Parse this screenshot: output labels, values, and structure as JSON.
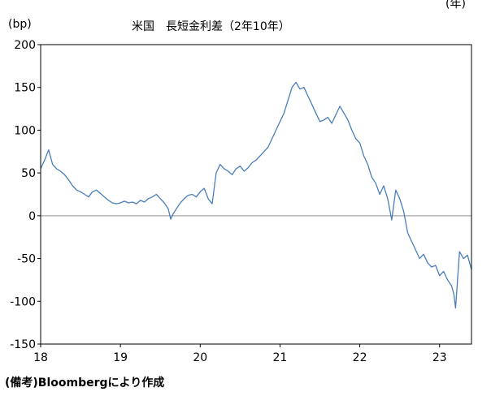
{
  "chart_data": {
    "type": "line",
    "title": "米国　長短金利差（2年10年）",
    "ylabel": "(bp)",
    "xlabel": "(年)",
    "source": "(備考)Bloombergにより作成",
    "ylim": [
      -150,
      200
    ],
    "xlim": [
      2018.0,
      2023.4
    ],
    "y_ticks": [
      "200",
      "150",
      "100",
      "50",
      "0",
      "-50",
      "-100",
      "-150"
    ],
    "x_ticks": [
      "18",
      "19",
      "20",
      "21",
      "22",
      "23"
    ],
    "grid": false,
    "line_color": "#4a7ebb",
    "zero_line_color": "#a6a6a6",
    "series": [
      {
        "x": [
          2018.0,
          2018.05,
          2018.1,
          2018.15,
          2018.2,
          2018.25,
          2018.3,
          2018.35,
          2018.4,
          2018.45,
          2018.5,
          2018.55,
          2018.6,
          2018.65,
          2018.7,
          2018.75,
          2018.8,
          2018.85,
          2018.9,
          2018.95,
          2019.0,
          2019.05,
          2019.1,
          2019.15,
          2019.2,
          2019.25,
          2019.3,
          2019.35,
          2019.4,
          2019.45,
          2019.5,
          2019.55,
          2019.6,
          2019.63,
          2019.66,
          2019.7,
          2019.75,
          2019.8,
          2019.85,
          2019.9,
          2019.95,
          2020.0,
          2020.05,
          2020.1,
          2020.15,
          2020.2,
          2020.25,
          2020.3,
          2020.35,
          2020.4,
          2020.45,
          2020.5,
          2020.55,
          2020.6,
          2020.65,
          2020.7,
          2020.75,
          2020.8,
          2020.85,
          2020.9,
          2020.95,
          2021.0,
          2021.05,
          2021.1,
          2021.15,
          2021.2,
          2021.25,
          2021.3,
          2021.35,
          2021.4,
          2021.45,
          2021.5,
          2021.55,
          2021.6,
          2021.65,
          2021.7,
          2021.75,
          2021.8,
          2021.85,
          2021.9,
          2021.95,
          2022.0,
          2022.05,
          2022.1,
          2022.15,
          2022.2,
          2022.25,
          2022.3,
          2022.35,
          2022.4,
          2022.45,
          2022.5,
          2022.55,
          2022.6,
          2022.65,
          2022.7,
          2022.75,
          2022.8,
          2022.85,
          2022.9,
          2022.95,
          2023.0,
          2023.05,
          2023.1,
          2023.15,
          2023.18,
          2023.2,
          2023.25,
          2023.3,
          2023.35,
          2023.4
        ],
        "values": [
          55,
          65,
          77,
          60,
          55,
          52,
          48,
          42,
          35,
          30,
          28,
          25,
          22,
          28,
          30,
          26,
          22,
          18,
          15,
          14,
          15,
          17,
          15,
          16,
          14,
          18,
          16,
          20,
          22,
          25,
          20,
          15,
          8,
          -4,
          2,
          8,
          15,
          20,
          24,
          25,
          22,
          28,
          32,
          20,
          14,
          50,
          60,
          55,
          52,
          48,
          55,
          58,
          52,
          56,
          62,
          65,
          70,
          75,
          80,
          90,
          100,
          110,
          120,
          135,
          150,
          156,
          148,
          150,
          140,
          130,
          120,
          110,
          112,
          115,
          108,
          118,
          128,
          120,
          112,
          100,
          90,
          85,
          70,
          60,
          45,
          38,
          25,
          35,
          20,
          -5,
          30,
          20,
          5,
          -20,
          -30,
          -40,
          -50,
          -45,
          -55,
          -60,
          -58,
          -70,
          -65,
          -75,
          -82,
          -92,
          -108,
          -42,
          -50,
          -46,
          -63
        ]
      }
    ]
  }
}
